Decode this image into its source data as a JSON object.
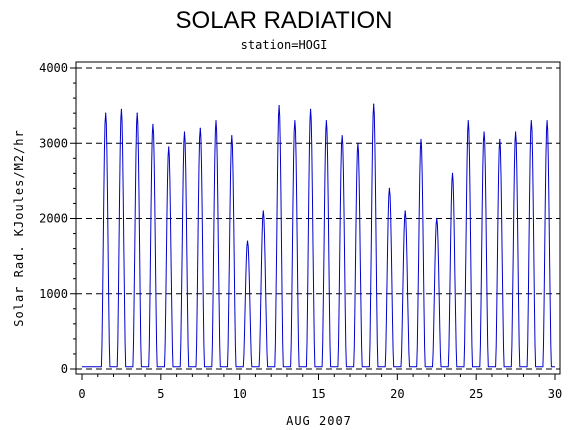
{
  "chart_data": {
    "type": "line",
    "title": "SOLAR RADIATION",
    "subtitle": "station=HOGI",
    "xlabel": "AUG 2007",
    "ylabel": "Solar Rad. KJoules/M2/hr",
    "xlim": [
      0,
      30
    ],
    "ylim": [
      0,
      4000
    ],
    "x_ticks": [
      0,
      5,
      10,
      15,
      20,
      25,
      30
    ],
    "x_tick_labels": [
      "0",
      "5",
      "10",
      "15",
      "20",
      "25",
      "30"
    ],
    "y_ticks": [
      0,
      1000,
      2000,
      3000,
      4000
    ],
    "y_tick_labels": [
      "0",
      "1000",
      "2000",
      "3000",
      "4000"
    ],
    "grid": "horizontal dashed",
    "line_color": "#0000cc",
    "daily_peak": {
      "day": [
        1.5,
        2.5,
        3.5,
        4.5,
        5.5,
        6.5,
        7.5,
        8.5,
        9.5,
        10.5,
        11.5,
        12.5,
        13.5,
        14.5,
        15.5,
        16.5,
        17.5,
        18.5,
        19.5,
        20.5,
        21.5,
        22.5,
        23.5,
        24.5,
        25.5,
        26.5,
        27.5,
        28.5,
        29.5
      ],
      "value": [
        3400,
        3450,
        3400,
        3250,
        2950,
        3150,
        3200,
        3300,
        3100,
        1700,
        2100,
        3500,
        3300,
        3450,
        3300,
        3100,
        3000,
        3520,
        2400,
        2100,
        3050,
        2000,
        2600,
        3300,
        3150,
        3050,
        3150,
        3300,
        3300
      ]
    }
  }
}
